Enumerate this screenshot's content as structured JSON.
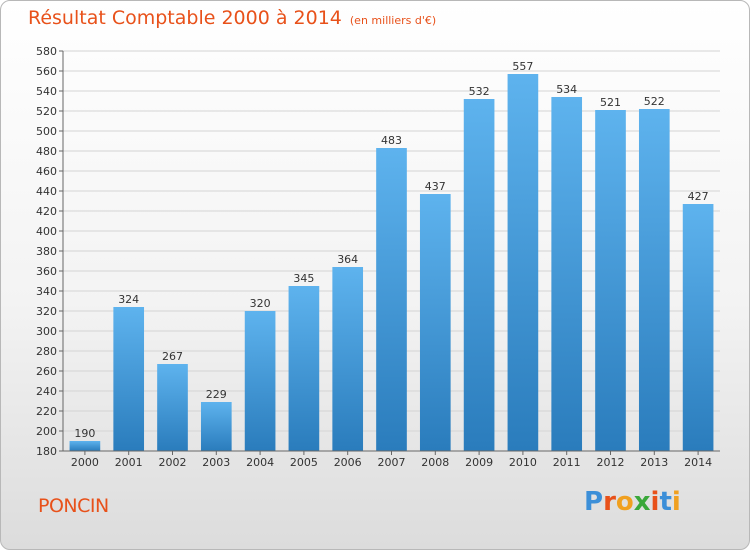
{
  "header": {
    "title": "Résultat Comptable 2000 à 2014",
    "unit": "(en milliers d'€)"
  },
  "footer": {
    "commune": "PONCIN",
    "logo": "Proxiti"
  },
  "colors": {
    "title": "#e8511a",
    "bar_top": "#5eb3ee",
    "bar_bottom": "#2a7cbc",
    "logo_letters": [
      "#3c8fd8",
      "#e8511a",
      "#f0a020",
      "#3aa83a",
      "#e8511a",
      "#3c8fd8",
      "#f0a020"
    ]
  },
  "chart_data": {
    "type": "bar",
    "title": "Résultat Comptable 2000 à 2014",
    "subtitle": "(en milliers d'€)",
    "categories": [
      "2000",
      "2001",
      "2002",
      "2003",
      "2004",
      "2005",
      "2006",
      "2007",
      "2008",
      "2009",
      "2010",
      "2011",
      "2012",
      "2013",
      "2014"
    ],
    "values": [
      190,
      324,
      267,
      229,
      320,
      345,
      364,
      483,
      437,
      532,
      557,
      534,
      521,
      522,
      427
    ],
    "ylim": [
      180,
      580
    ],
    "ytick_step": 20,
    "grid": true
  }
}
